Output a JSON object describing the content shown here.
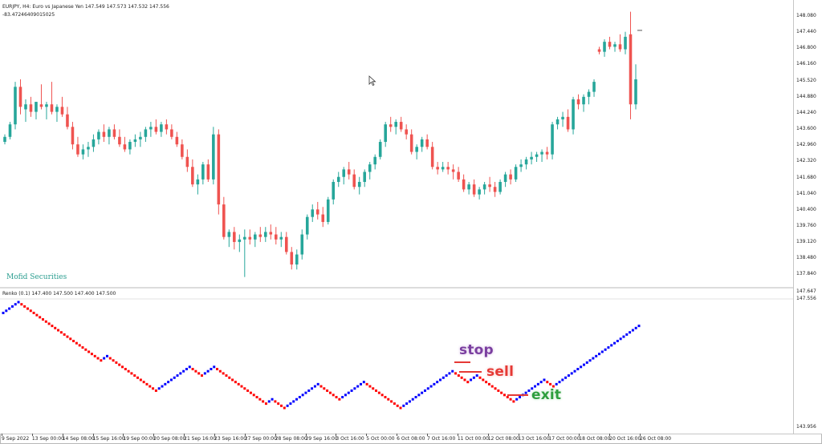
{
  "main_chart": {
    "header_line1": "EURJPY, H4: Euro vs Japanese Yen  147.549 147.573 147.532 147.556",
    "header_line2": "-83.47246409015025",
    "watermark": "Mofid Securities",
    "y_ticks": [
      "148.080",
      "147.440",
      "146.800",
      "146.160",
      "145.520",
      "144.880",
      "144.240",
      "143.600",
      "142.960",
      "142.320",
      "141.680",
      "141.040",
      "140.400",
      "139.760",
      "139.120",
      "138.480",
      "137.840"
    ],
    "y_range": [
      137.4,
      148.45
    ],
    "candles": [
      [
        143.1,
        143.4,
        143.0,
        143.3
      ],
      [
        143.3,
        143.9,
        143.2,
        143.8
      ],
      [
        143.8,
        145.5,
        143.6,
        145.3
      ],
      [
        145.3,
        145.6,
        144.2,
        144.5
      ],
      [
        144.4,
        144.8,
        143.9,
        144.6
      ],
      [
        144.6,
        144.9,
        144.1,
        144.3
      ],
      [
        144.3,
        144.7,
        144.0,
        144.7
      ],
      [
        144.6,
        145.4,
        144.4,
        144.5
      ],
      [
        144.5,
        144.7,
        144.0,
        144.6
      ],
      [
        144.6,
        145.5,
        144.2,
        144.3
      ],
      [
        144.3,
        144.6,
        143.9,
        144.5
      ],
      [
        144.5,
        144.9,
        144.1,
        144.2
      ],
      [
        144.2,
        144.5,
        143.6,
        143.7
      ],
      [
        143.7,
        143.9,
        142.8,
        143.0
      ],
      [
        143.0,
        143.3,
        142.5,
        142.6
      ],
      [
        142.6,
        143.0,
        142.4,
        142.8
      ],
      [
        142.8,
        143.1,
        142.5,
        142.9
      ],
      [
        142.9,
        143.4,
        142.7,
        143.2
      ],
      [
        143.2,
        143.6,
        143.0,
        143.5
      ],
      [
        143.5,
        143.8,
        143.1,
        143.3
      ],
      [
        143.3,
        143.7,
        143.0,
        143.6
      ],
      [
        143.6,
        143.8,
        143.2,
        143.3
      ],
      [
        143.3,
        143.6,
        142.9,
        143.0
      ],
      [
        143.0,
        143.3,
        142.7,
        142.8
      ],
      [
        142.8,
        143.2,
        142.6,
        143.1
      ],
      [
        143.1,
        143.4,
        142.9,
        143.2
      ],
      [
        143.2,
        143.5,
        142.9,
        143.3
      ],
      [
        143.3,
        143.7,
        143.1,
        143.6
      ],
      [
        143.6,
        143.9,
        143.3,
        143.7
      ],
      [
        143.7,
        144.0,
        143.4,
        143.5
      ],
      [
        143.5,
        143.9,
        143.3,
        143.8
      ],
      [
        143.8,
        144.0,
        143.4,
        143.6
      ],
      [
        143.6,
        143.8,
        143.2,
        143.3
      ],
      [
        143.3,
        143.5,
        142.9,
        143.0
      ],
      [
        143.0,
        143.2,
        142.4,
        142.5
      ],
      [
        142.5,
        142.8,
        141.9,
        142.1
      ],
      [
        142.1,
        142.4,
        141.3,
        141.4
      ],
      [
        141.4,
        141.8,
        141.0,
        141.6
      ],
      [
        141.6,
        142.3,
        141.4,
        142.2
      ],
      [
        142.2,
        142.4,
        141.5,
        141.6
      ],
      [
        141.6,
        143.7,
        141.4,
        143.4
      ],
      [
        143.4,
        143.6,
        140.2,
        140.6
      ],
      [
        140.6,
        140.9,
        139.2,
        139.3
      ],
      [
        139.3,
        139.6,
        138.9,
        139.5
      ],
      [
        139.5,
        139.7,
        138.8,
        139.1
      ],
      [
        139.1,
        139.4,
        138.7,
        139.2
      ],
      [
        139.2,
        139.6,
        137.7,
        139.3
      ],
      [
        139.3,
        139.6,
        139.0,
        139.2
      ],
      [
        139.2,
        139.5,
        138.9,
        139.4
      ],
      [
        139.4,
        139.7,
        139.1,
        139.3
      ],
      [
        139.3,
        139.7,
        139.1,
        139.5
      ],
      [
        139.5,
        139.8,
        139.2,
        139.4
      ],
      [
        139.4,
        139.7,
        139.0,
        139.2
      ],
      [
        139.2,
        139.5,
        138.9,
        139.3
      ],
      [
        139.3,
        139.5,
        138.6,
        138.7
      ],
      [
        138.7,
        138.9,
        138.0,
        138.2
      ],
      [
        138.2,
        138.8,
        138.0,
        138.6
      ],
      [
        138.6,
        139.6,
        138.4,
        139.4
      ],
      [
        139.4,
        140.2,
        139.2,
        140.1
      ],
      [
        140.1,
        140.6,
        139.9,
        140.4
      ],
      [
        140.4,
        140.7,
        140.0,
        140.2
      ],
      [
        140.2,
        140.5,
        139.7,
        139.9
      ],
      [
        139.9,
        140.9,
        139.8,
        140.8
      ],
      [
        140.8,
        141.6,
        140.6,
        141.5
      ],
      [
        141.5,
        141.9,
        141.3,
        141.7
      ],
      [
        141.7,
        142.1,
        141.4,
        142.0
      ],
      [
        142.0,
        142.3,
        141.6,
        141.8
      ],
      [
        141.8,
        142.0,
        141.2,
        141.3
      ],
      [
        141.3,
        141.7,
        141.0,
        141.5
      ],
      [
        141.5,
        142.0,
        141.3,
        141.9
      ],
      [
        141.9,
        142.3,
        141.6,
        142.2
      ],
      [
        142.2,
        142.6,
        142.0,
        142.5
      ],
      [
        142.5,
        143.2,
        142.4,
        143.1
      ],
      [
        143.1,
        143.9,
        142.9,
        143.8
      ],
      [
        143.8,
        144.1,
        143.5,
        143.7
      ],
      [
        143.7,
        144.0,
        143.4,
        143.9
      ],
      [
        143.9,
        144.1,
        143.5,
        143.6
      ],
      [
        143.6,
        143.8,
        143.2,
        143.4
      ],
      [
        143.4,
        143.6,
        142.6,
        142.7
      ],
      [
        142.7,
        143.0,
        142.4,
        142.9
      ],
      [
        142.9,
        143.3,
        142.7,
        143.2
      ],
      [
        143.2,
        143.4,
        142.8,
        142.9
      ],
      [
        142.9,
        143.1,
        142.0,
        142.1
      ],
      [
        142.1,
        142.3,
        141.8,
        142.0
      ],
      [
        142.0,
        142.3,
        141.9,
        142.1
      ],
      [
        142.1,
        142.3,
        141.8,
        142.0
      ],
      [
        142.0,
        142.2,
        141.6,
        141.9
      ],
      [
        141.9,
        142.1,
        141.5,
        141.6
      ],
      [
        141.6,
        141.8,
        141.1,
        141.2
      ],
      [
        141.2,
        141.5,
        141.0,
        141.4
      ],
      [
        141.4,
        141.6,
        140.9,
        141.0
      ],
      [
        141.0,
        141.3,
        140.8,
        141.2
      ],
      [
        141.2,
        141.5,
        141.0,
        141.4
      ],
      [
        141.4,
        141.7,
        141.1,
        141.3
      ],
      [
        141.3,
        141.5,
        140.9,
        141.1
      ],
      [
        141.1,
        141.6,
        141.0,
        141.5
      ],
      [
        141.5,
        141.9,
        141.3,
        141.8
      ],
      [
        141.8,
        142.0,
        141.4,
        141.6
      ],
      [
        141.6,
        142.2,
        141.5,
        142.1
      ],
      [
        142.1,
        142.4,
        141.9,
        142.2
      ],
      [
        142.2,
        142.5,
        142.0,
        142.4
      ],
      [
        142.4,
        142.7,
        142.2,
        142.5
      ],
      [
        142.5,
        142.7,
        142.3,
        142.6
      ],
      [
        142.6,
        142.8,
        142.3,
        142.7
      ],
      [
        142.7,
        142.9,
        142.4,
        142.6
      ],
      [
        142.6,
        143.9,
        142.4,
        143.8
      ],
      [
        143.8,
        144.1,
        143.6,
        144.0
      ],
      [
        144.0,
        144.3,
        143.7,
        144.1
      ],
      [
        144.1,
        144.4,
        143.5,
        143.6
      ],
      [
        143.6,
        144.9,
        143.4,
        144.8
      ],
      [
        144.8,
        145.0,
        144.4,
        144.6
      ],
      [
        144.6,
        145.0,
        144.3,
        144.9
      ],
      [
        144.9,
        145.2,
        144.6,
        145.1
      ],
      [
        145.1,
        145.6,
        144.9,
        145.5
      ],
      [
        146.8,
        146.9,
        146.6,
        146.7
      ],
      [
        146.7,
        147.2,
        146.5,
        147.1
      ],
      [
        147.1,
        147.3,
        146.8,
        146.9
      ],
      [
        146.9,
        147.1,
        146.7,
        147.0
      ],
      [
        147.0,
        147.4,
        146.7,
        146.8
      ],
      [
        146.8,
        147.5,
        146.6,
        147.3
      ],
      [
        147.4,
        148.3,
        144.0,
        144.6
      ],
      [
        144.6,
        146.2,
        144.4,
        145.6
      ]
    ]
  },
  "renko": {
    "header": "Renko (0.1) 147.400 147.500 147.400 147.500",
    "y_ticks": [
      "147.647",
      "147.556",
      "143.956"
    ],
    "directions": "UUUUUUDDDDDDDDDDDDDDDDDDDDDDDDDDDUUDDDDDDDDDDDDDDDDUUUUUUUUUUUDDDDUUUUDDDDDDDDDDDDDDDDDUUDDDDUUUUUUUUUUUDDDDDDDUUUUUUUUDDDDDDDDDDDDUUUUUUUUUUUUUUUUUDDDDDUUUDDDDDDDDDDDDUUUUUUUUUUDDDUUUUUUUUUUUUUUUUUUUUUUUUUUUU"
  },
  "x_axis": {
    "labels": [
      "9 Sep 2022",
      "13 Sep 00:00",
      "14 Sep 08:00",
      "15 Sep 16:00",
      "19 Sep 00:00",
      "20 Sep 08:00",
      "21 Sep 16:00",
      "23 Sep 16:00",
      "27 Sep 00:00",
      "28 Sep 08:00",
      "29 Sep 16:00",
      "3 Oct 16:00",
      "5 Oct 00:00",
      "6 Oct 08:00",
      "7 Oct 16:00",
      "11 Oct 00:00",
      "12 Oct 08:00",
      "13 Oct 16:00",
      "17 Oct 00:00",
      "18 Oct 08:00",
      "20 Oct 16:00",
      "26 Oct 08:00"
    ]
  },
  "annotations": {
    "stop": "stop",
    "sell": "sell",
    "exit": "exit"
  },
  "colors": {
    "bull": "#26a69a",
    "bear": "#ef5350",
    "renko_up": "#0000ff",
    "renko_down": "#ff0000",
    "stop": "#7b3fa0",
    "sell": "#e53935",
    "exit": "#2e9e3e"
  }
}
